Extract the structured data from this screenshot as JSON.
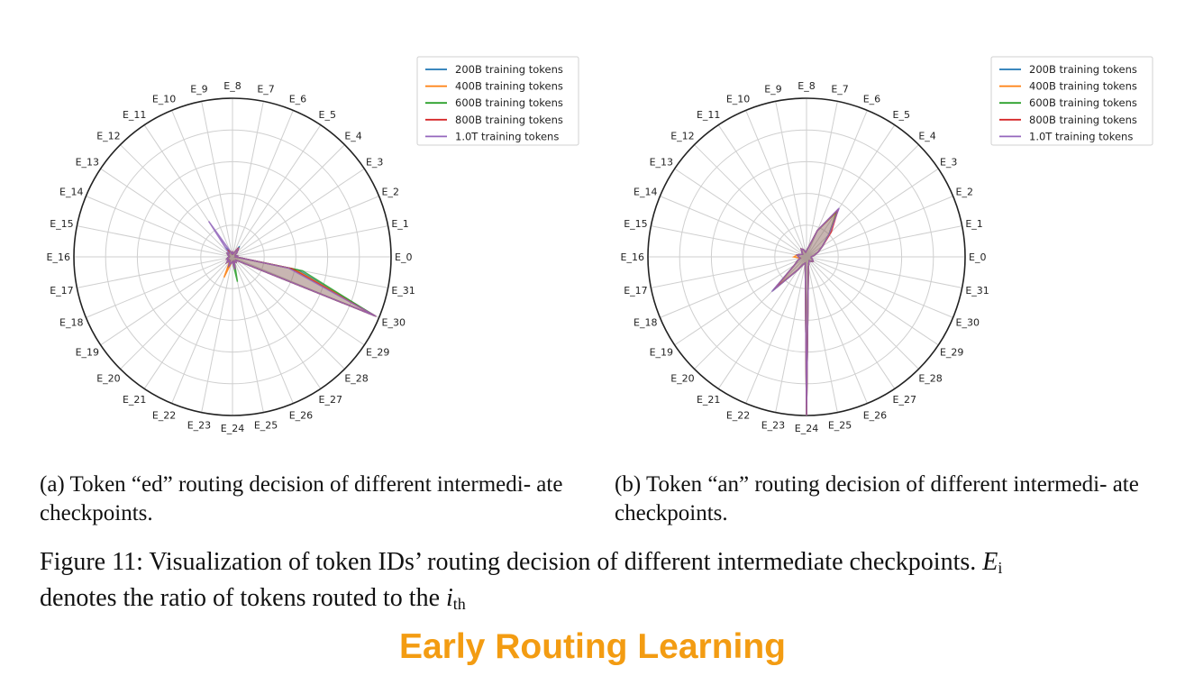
{
  "chart_data": [
    {
      "type": "radar",
      "caption": "(a) Token “ed” routing decision of different intermediate checkpoints.",
      "categories": [
        "E_0",
        "E_1",
        "E_2",
        "E_3",
        "E_4",
        "E_5",
        "E_6",
        "E_7",
        "E_8",
        "E_9",
        "E_10",
        "E_11",
        "E_12",
        "E_13",
        "E_14",
        "E_15",
        "E_16",
        "E_17",
        "E_18",
        "E_19",
        "E_20",
        "E_21",
        "E_22",
        "E_23",
        "E_24",
        "E_25",
        "E_26",
        "E_27",
        "E_28",
        "E_29",
        "E_30",
        "E_31"
      ],
      "rlim": [
        0,
        1
      ],
      "grid": true,
      "legend_position": "top-right",
      "series": [
        {
          "name": "200B training tokens",
          "color": "#1f77b4",
          "values": [
            0.02,
            0.03,
            0.02,
            0.02,
            0.04,
            0.08,
            0.03,
            0.02,
            0.03,
            0.02,
            0.04,
            0.06,
            0.03,
            0.04,
            0.03,
            0.02,
            0.02,
            0.03,
            0.04,
            0.03,
            0.05,
            0.03,
            0.07,
            0.04,
            0.03,
            0.08,
            0.03,
            0.04,
            0.03,
            0.05,
            0.98,
            0.42
          ]
        },
        {
          "name": "400B training tokens",
          "color": "#ff7f0e",
          "values": [
            0.02,
            0.03,
            0.02,
            0.02,
            0.04,
            0.07,
            0.03,
            0.02,
            0.03,
            0.02,
            0.04,
            0.05,
            0.03,
            0.04,
            0.03,
            0.02,
            0.02,
            0.03,
            0.04,
            0.03,
            0.05,
            0.03,
            0.14,
            0.04,
            0.03,
            0.07,
            0.03,
            0.04,
            0.03,
            0.05,
            0.98,
            0.4
          ]
        },
        {
          "name": "600B training tokens",
          "color": "#2ca02c",
          "values": [
            0.02,
            0.03,
            0.02,
            0.02,
            0.04,
            0.06,
            0.03,
            0.02,
            0.03,
            0.02,
            0.04,
            0.05,
            0.03,
            0.04,
            0.03,
            0.02,
            0.02,
            0.03,
            0.04,
            0.03,
            0.05,
            0.03,
            0.06,
            0.04,
            0.03,
            0.16,
            0.03,
            0.04,
            0.03,
            0.05,
            0.97,
            0.45
          ]
        },
        {
          "name": "800B training tokens",
          "color": "#d62728",
          "values": [
            0.02,
            0.03,
            0.02,
            0.02,
            0.04,
            0.07,
            0.03,
            0.02,
            0.03,
            0.02,
            0.04,
            0.05,
            0.03,
            0.04,
            0.03,
            0.02,
            0.02,
            0.03,
            0.04,
            0.03,
            0.05,
            0.03,
            0.06,
            0.04,
            0.03,
            0.08,
            0.03,
            0.04,
            0.03,
            0.05,
            0.97,
            0.38
          ]
        },
        {
          "name": "1.0T training tokens",
          "color": "#9467bd",
          "values": [
            0.02,
            0.03,
            0.02,
            0.02,
            0.04,
            0.06,
            0.03,
            0.02,
            0.03,
            0.02,
            0.04,
            0.27,
            0.03,
            0.04,
            0.03,
            0.02,
            0.02,
            0.03,
            0.04,
            0.03,
            0.05,
            0.03,
            0.06,
            0.04,
            0.03,
            0.08,
            0.03,
            0.04,
            0.03,
            0.05,
            0.98,
            0.36
          ]
        }
      ]
    },
    {
      "type": "radar",
      "caption": "(b) Token “an” routing decision of different intermediate checkpoints.",
      "categories": [
        "E_0",
        "E_1",
        "E_2",
        "E_3",
        "E_4",
        "E_5",
        "E_6",
        "E_7",
        "E_8",
        "E_9",
        "E_10",
        "E_11",
        "E_12",
        "E_13",
        "E_14",
        "E_15",
        "E_16",
        "E_17",
        "E_18",
        "E_19",
        "E_20",
        "E_21",
        "E_22",
        "E_23",
        "E_24",
        "E_25",
        "E_26",
        "E_27",
        "E_28",
        "E_29",
        "E_30",
        "E_31"
      ],
      "rlim": [
        0,
        1
      ],
      "grid": true,
      "legend_position": "top-right",
      "series": [
        {
          "name": "200B training tokens",
          "color": "#1f77b4",
          "values": [
            0.03,
            0.05,
            0.08,
            0.12,
            0.2,
            0.36,
            0.18,
            0.06,
            0.04,
            0.03,
            0.05,
            0.06,
            0.04,
            0.03,
            0.04,
            0.06,
            0.05,
            0.04,
            0.06,
            0.09,
            0.3,
            0.1,
            0.05,
            0.04,
            1.0,
            0.06,
            0.04,
            0.03,
            0.04,
            0.05,
            0.04,
            0.03
          ]
        },
        {
          "name": "400B training tokens",
          "color": "#ff7f0e",
          "values": [
            0.03,
            0.05,
            0.08,
            0.12,
            0.2,
            0.34,
            0.18,
            0.06,
            0.04,
            0.03,
            0.05,
            0.06,
            0.04,
            0.03,
            0.04,
            0.06,
            0.08,
            0.04,
            0.06,
            0.09,
            0.28,
            0.1,
            0.05,
            0.04,
            1.0,
            0.06,
            0.04,
            0.03,
            0.04,
            0.05,
            0.04,
            0.03
          ]
        },
        {
          "name": "600B training tokens",
          "color": "#2ca02c",
          "values": [
            0.03,
            0.05,
            0.08,
            0.12,
            0.2,
            0.35,
            0.18,
            0.06,
            0.04,
            0.03,
            0.05,
            0.06,
            0.04,
            0.03,
            0.04,
            0.06,
            0.05,
            0.04,
            0.06,
            0.09,
            0.3,
            0.1,
            0.05,
            0.04,
            1.0,
            0.06,
            0.04,
            0.03,
            0.04,
            0.05,
            0.04,
            0.03
          ]
        },
        {
          "name": "800B training tokens",
          "color": "#d62728",
          "values": [
            0.03,
            0.05,
            0.08,
            0.12,
            0.22,
            0.36,
            0.18,
            0.06,
            0.04,
            0.03,
            0.05,
            0.06,
            0.04,
            0.03,
            0.04,
            0.06,
            0.05,
            0.04,
            0.06,
            0.09,
            0.29,
            0.1,
            0.05,
            0.04,
            1.0,
            0.06,
            0.04,
            0.03,
            0.04,
            0.05,
            0.04,
            0.03
          ]
        },
        {
          "name": "1.0T training tokens",
          "color": "#9467bd",
          "values": [
            0.03,
            0.05,
            0.08,
            0.12,
            0.2,
            0.37,
            0.18,
            0.06,
            0.04,
            0.03,
            0.05,
            0.06,
            0.04,
            0.03,
            0.04,
            0.06,
            0.05,
            0.04,
            0.06,
            0.09,
            0.31,
            0.1,
            0.05,
            0.04,
            1.0,
            0.06,
            0.04,
            0.03,
            0.04,
            0.05,
            0.04,
            0.03
          ]
        }
      ]
    }
  ],
  "captions": {
    "a": "(a) Token “ed” routing decision of different intermedi- ate checkpoints.",
    "b": "(b) Token “an” routing decision of different intermedi- ate checkpoints."
  },
  "figure_caption": {
    "prefix": "Figure 11: Visualization of token IDs’ routing decision of different intermediate checkpoints.",
    "math_symbol": "E",
    "math_subscript": "i",
    "line2": "denotes the ratio of tokens routed to the",
    "math_i": "i",
    "math_th": "th"
  },
  "slide_title": "Early Routing Learning"
}
